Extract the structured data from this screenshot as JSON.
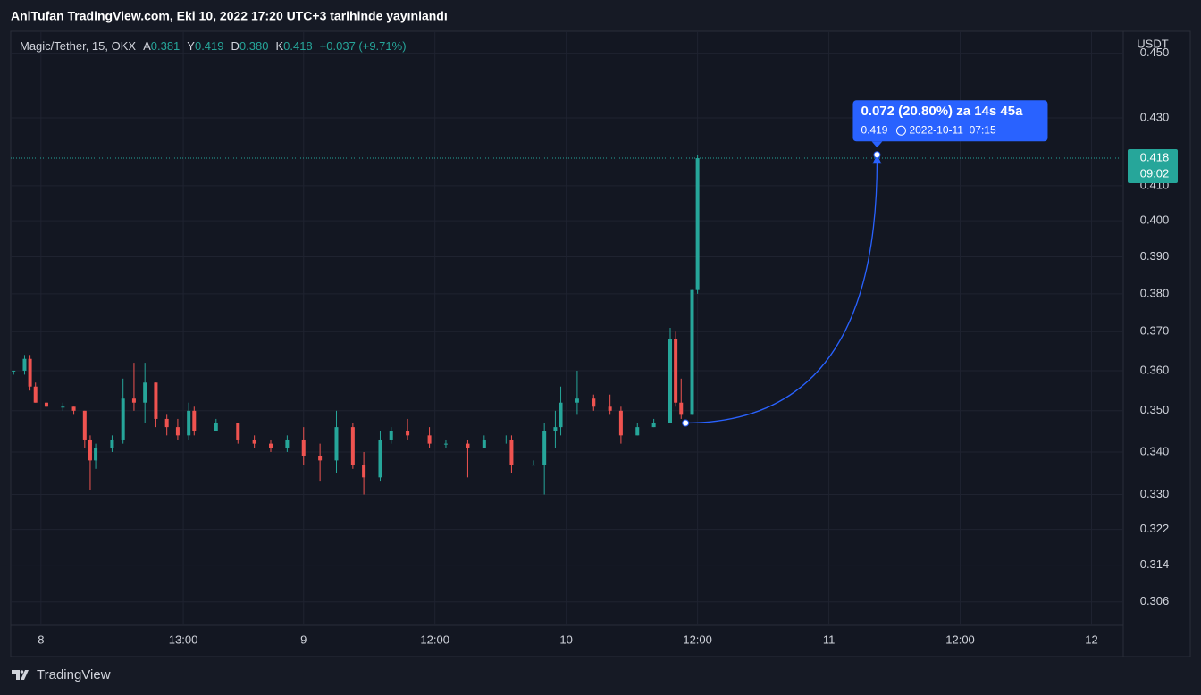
{
  "chart_data": {
    "type": "candlestick",
    "header": "AnlTufan TradingView.com, Eki 10, 2022 17:20 UTC+3 tarihinde yayınlandı",
    "symbol": "Magic/Tether, 15, OKX",
    "legend": [
      {
        "key": "A",
        "value": "0.381"
      },
      {
        "key": "Y",
        "value": "0.419"
      },
      {
        "key": "D",
        "value": "0.380"
      },
      {
        "key": "K",
        "value": "0.418"
      }
    ],
    "change": "+0.037 (+9.71%)",
    "currency": "USDT",
    "log_scale": true,
    "grid": true,
    "up_color": "#26a69a",
    "down_color": "#ef5350",
    "x": [
      -2.5,
      -1.5,
      -1,
      -0.5,
      0.5,
      2,
      3,
      4,
      4.5,
      5,
      6.5,
      7.5,
      8.5,
      9.5,
      10.5,
      11.5,
      12.5,
      13.5,
      14,
      16,
      18,
      19.5,
      21,
      22.5,
      24,
      25.5,
      27,
      28.5,
      29.5,
      31,
      32,
      33.5,
      35.5,
      37,
      39,
      40.5,
      42.5,
      43,
      45,
      46,
      47,
      47.5,
      49,
      50.5,
      52,
      53,
      54.5,
      56,
      57.5,
      58,
      58.5,
      59.5,
      60
    ],
    "open": [
      0.36,
      0.36,
      0.363,
      0.356,
      0.352,
      0.351,
      0.351,
      0.35,
      0.343,
      0.338,
      0.341,
      0.343,
      0.353,
      0.352,
      0.357,
      0.348,
      0.346,
      0.344,
      0.35,
      0.345,
      0.347,
      0.343,
      0.342,
      0.341,
      0.343,
      0.339,
      0.338,
      0.346,
      0.337,
      0.334,
      0.343,
      0.345,
      0.344,
      0.342,
      0.342,
      0.341,
      0.343,
      0.343,
      0.337,
      0.337,
      0.345,
      0.346,
      0.352,
      0.353,
      0.351,
      0.35,
      0.344,
      0.346,
      0.347,
      0.368,
      0.352,
      0.349,
      0.381
    ],
    "high": [
      0.36,
      0.364,
      0.364,
      0.357,
      0.352,
      0.352,
      0.351,
      0.35,
      0.344,
      0.342,
      0.344,
      0.358,
      0.362,
      0.362,
      0.357,
      0.349,
      0.348,
      0.352,
      0.351,
      0.348,
      0.347,
      0.344,
      0.343,
      0.344,
      0.346,
      0.342,
      0.35,
      0.347,
      0.34,
      0.345,
      0.346,
      0.348,
      0.346,
      0.343,
      0.343,
      0.344,
      0.344,
      0.344,
      0.338,
      0.347,
      0.35,
      0.356,
      0.36,
      0.354,
      0.354,
      0.351,
      0.347,
      0.348,
      0.371,
      0.37,
      0.358,
      0.381,
      0.419
    ],
    "low": [
      0.359,
      0.359,
      0.355,
      0.352,
      0.351,
      0.35,
      0.349,
      0.341,
      0.331,
      0.336,
      0.34,
      0.342,
      0.35,
      0.347,
      0.346,
      0.344,
      0.343,
      0.343,
      0.344,
      0.345,
      0.342,
      0.341,
      0.34,
      0.34,
      0.337,
      0.333,
      0.335,
      0.336,
      0.33,
      0.333,
      0.342,
      0.343,
      0.341,
      0.341,
      0.334,
      0.341,
      0.342,
      0.335,
      0.337,
      0.33,
      0.341,
      0.344,
      0.349,
      0.35,
      0.349,
      0.342,
      0.344,
      0.346,
      0.347,
      0.351,
      0.348,
      0.349,
      0.38
    ],
    "close": [
      0.36,
      0.363,
      0.356,
      0.352,
      0.351,
      0.351,
      0.35,
      0.343,
      0.338,
      0.341,
      0.343,
      0.353,
      0.352,
      0.357,
      0.348,
      0.346,
      0.344,
      0.35,
      0.345,
      0.347,
      0.343,
      0.342,
      0.341,
      0.343,
      0.339,
      0.338,
      0.346,
      0.337,
      0.334,
      0.343,
      0.345,
      0.344,
      0.342,
      0.342,
      0.341,
      0.343,
      0.343,
      0.337,
      0.337,
      0.345,
      0.346,
      0.352,
      0.353,
      0.351,
      0.35,
      0.344,
      0.346,
      0.347,
      0.368,
      0.352,
      0.349,
      0.381,
      0.418
    ],
    "xlim": [
      -2.6,
      98.9
    ],
    "xticks": [
      {
        "value": 0,
        "label": "8"
      },
      {
        "value": 13,
        "label": "13:00"
      },
      {
        "value": 24,
        "label": "9"
      },
      {
        "value": 36,
        "label": "12:00"
      },
      {
        "value": 48,
        "label": "10"
      },
      {
        "value": 60,
        "label": "12:00"
      },
      {
        "value": 72,
        "label": "11"
      },
      {
        "value": 84,
        "label": "12:00"
      },
      {
        "value": 96,
        "label": "12"
      }
    ],
    "ylim": [
      0.301,
      0.457
    ],
    "yticks": [
      {
        "value": 0.45,
        "label": "0.450"
      },
      {
        "value": 0.43,
        "label": "0.430"
      },
      {
        "value": 0.41,
        "label": "0.410"
      },
      {
        "value": 0.4,
        "label": "0.400"
      },
      {
        "value": 0.39,
        "label": "0.390"
      },
      {
        "value": 0.38,
        "label": "0.380"
      },
      {
        "value": 0.37,
        "label": "0.370"
      },
      {
        "value": 0.36,
        "label": "0.360"
      },
      {
        "value": 0.35,
        "label": "0.350"
      },
      {
        "value": 0.34,
        "label": "0.340"
      },
      {
        "value": 0.33,
        "label": "0.330"
      },
      0.322,
      0.314,
      0.306
    ],
    "last_price": 0.418,
    "countdown": "09:02",
    "measure": {
      "from_x": 58.9,
      "from_price": 0.347,
      "to_x": 76.4,
      "to_price": 0.419,
      "title": "0.072 (20.80%) za 14s 45a",
      "date": "2022-10-11  07:15"
    },
    "footer": "TradingView"
  }
}
